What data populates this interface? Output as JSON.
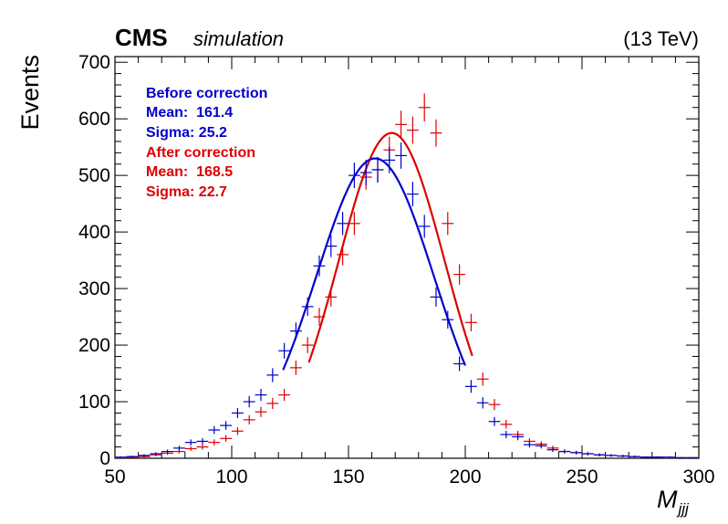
{
  "header": {
    "experiment": "CMS",
    "tag": "simulation",
    "energy": "(13 TeV)"
  },
  "colors": {
    "before": "#0000cc",
    "after": "#dd0000",
    "axis": "#000000"
  },
  "chart_data": {
    "type": "scatter",
    "xlabel": "M",
    "xlabel_sub": "jjj",
    "ylabel": "Events",
    "xlim": [
      50,
      300
    ],
    "ylim": [
      0,
      710
    ],
    "x_ticks": [
      50,
      100,
      150,
      200,
      250,
      300
    ],
    "y_ticks": [
      0,
      100,
      200,
      300,
      400,
      500,
      600,
      700
    ],
    "grid": false,
    "legend_position": "top-left",
    "bin_width": 5,
    "series": [
      {
        "key": "before",
        "points": [
          [
            52.5,
            2
          ],
          [
            57.5,
            3
          ],
          [
            62.5,
            5
          ],
          [
            67.5,
            8
          ],
          [
            72.5,
            12
          ],
          [
            77.5,
            18
          ],
          [
            82.5,
            28
          ],
          [
            87.5,
            30
          ],
          [
            92.5,
            50
          ],
          [
            97.5,
            58
          ],
          [
            102.5,
            80
          ],
          [
            107.5,
            100
          ],
          [
            112.5,
            112
          ],
          [
            117.5,
            147
          ],
          [
            122.5,
            190
          ],
          [
            127.5,
            225
          ],
          [
            132.5,
            268
          ],
          [
            137.5,
            340
          ],
          [
            142.5,
            375
          ],
          [
            147.5,
            415
          ],
          [
            152.5,
            500
          ],
          [
            157.5,
            505
          ],
          [
            162.5,
            510
          ],
          [
            167.5,
            527
          ],
          [
            172.5,
            535
          ],
          [
            177.5,
            467
          ],
          [
            182.5,
            410
          ],
          [
            187.5,
            285
          ],
          [
            192.5,
            245
          ],
          [
            197.5,
            167
          ],
          [
            202.5,
            127
          ],
          [
            207.5,
            98
          ],
          [
            212.5,
            65
          ],
          [
            217.5,
            42
          ],
          [
            222.5,
            38
          ],
          [
            227.5,
            24
          ],
          [
            232.5,
            22
          ],
          [
            237.5,
            15
          ],
          [
            242.5,
            12
          ],
          [
            247.5,
            10
          ],
          [
            252.5,
            8
          ],
          [
            257.5,
            6
          ],
          [
            262.5,
            5
          ],
          [
            267.5,
            4
          ],
          [
            272.5,
            3
          ],
          [
            277.5,
            2
          ],
          [
            282.5,
            2
          ],
          [
            287.5,
            2
          ],
          [
            292.5,
            1
          ],
          [
            297.5,
            1
          ]
        ],
        "fit": {
          "mean": 161.4,
          "sigma": 25.2,
          "amplitude": 530,
          "range": [
            122,
            200
          ]
        }
      },
      {
        "key": "after",
        "points": [
          [
            52.5,
            1
          ],
          [
            57.5,
            2
          ],
          [
            62.5,
            3
          ],
          [
            67.5,
            6
          ],
          [
            72.5,
            9
          ],
          [
            77.5,
            12
          ],
          [
            82.5,
            17
          ],
          [
            87.5,
            20
          ],
          [
            92.5,
            28
          ],
          [
            97.5,
            35
          ],
          [
            102.5,
            48
          ],
          [
            107.5,
            68
          ],
          [
            112.5,
            82
          ],
          [
            117.5,
            97
          ],
          [
            122.5,
            112
          ],
          [
            127.5,
            160
          ],
          [
            132.5,
            200
          ],
          [
            137.5,
            250
          ],
          [
            142.5,
            285
          ],
          [
            147.5,
            360
          ],
          [
            152.5,
            415
          ],
          [
            157.5,
            497
          ],
          [
            162.5,
            510
          ],
          [
            167.5,
            545
          ],
          [
            172.5,
            590
          ],
          [
            177.5,
            580
          ],
          [
            182.5,
            620
          ],
          [
            187.5,
            575
          ],
          [
            192.5,
            415
          ],
          [
            197.5,
            325
          ],
          [
            202.5,
            240
          ],
          [
            207.5,
            140
          ],
          [
            212.5,
            95
          ],
          [
            217.5,
            60
          ],
          [
            222.5,
            42
          ],
          [
            227.5,
            30
          ],
          [
            232.5,
            25
          ],
          [
            237.5,
            18
          ],
          [
            242.5,
            12
          ],
          [
            247.5,
            10
          ],
          [
            252.5,
            8
          ],
          [
            257.5,
            6
          ],
          [
            262.5,
            5
          ],
          [
            267.5,
            4
          ],
          [
            272.5,
            3
          ],
          [
            277.5,
            2
          ],
          [
            282.5,
            2
          ],
          [
            287.5,
            1
          ],
          [
            292.5,
            1
          ],
          [
            297.5,
            1
          ]
        ],
        "fit": {
          "mean": 168.5,
          "sigma": 22.7,
          "amplitude": 575,
          "range": [
            133,
            203
          ]
        }
      }
    ],
    "legend": {
      "before_title": "Before correction",
      "before_mean": "Mean:  161.4",
      "before_sigma": "Sigma: 25.2",
      "after_title": "After correction",
      "after_mean": "Mean:  168.5",
      "after_sigma": "Sigma: 22.7"
    }
  }
}
